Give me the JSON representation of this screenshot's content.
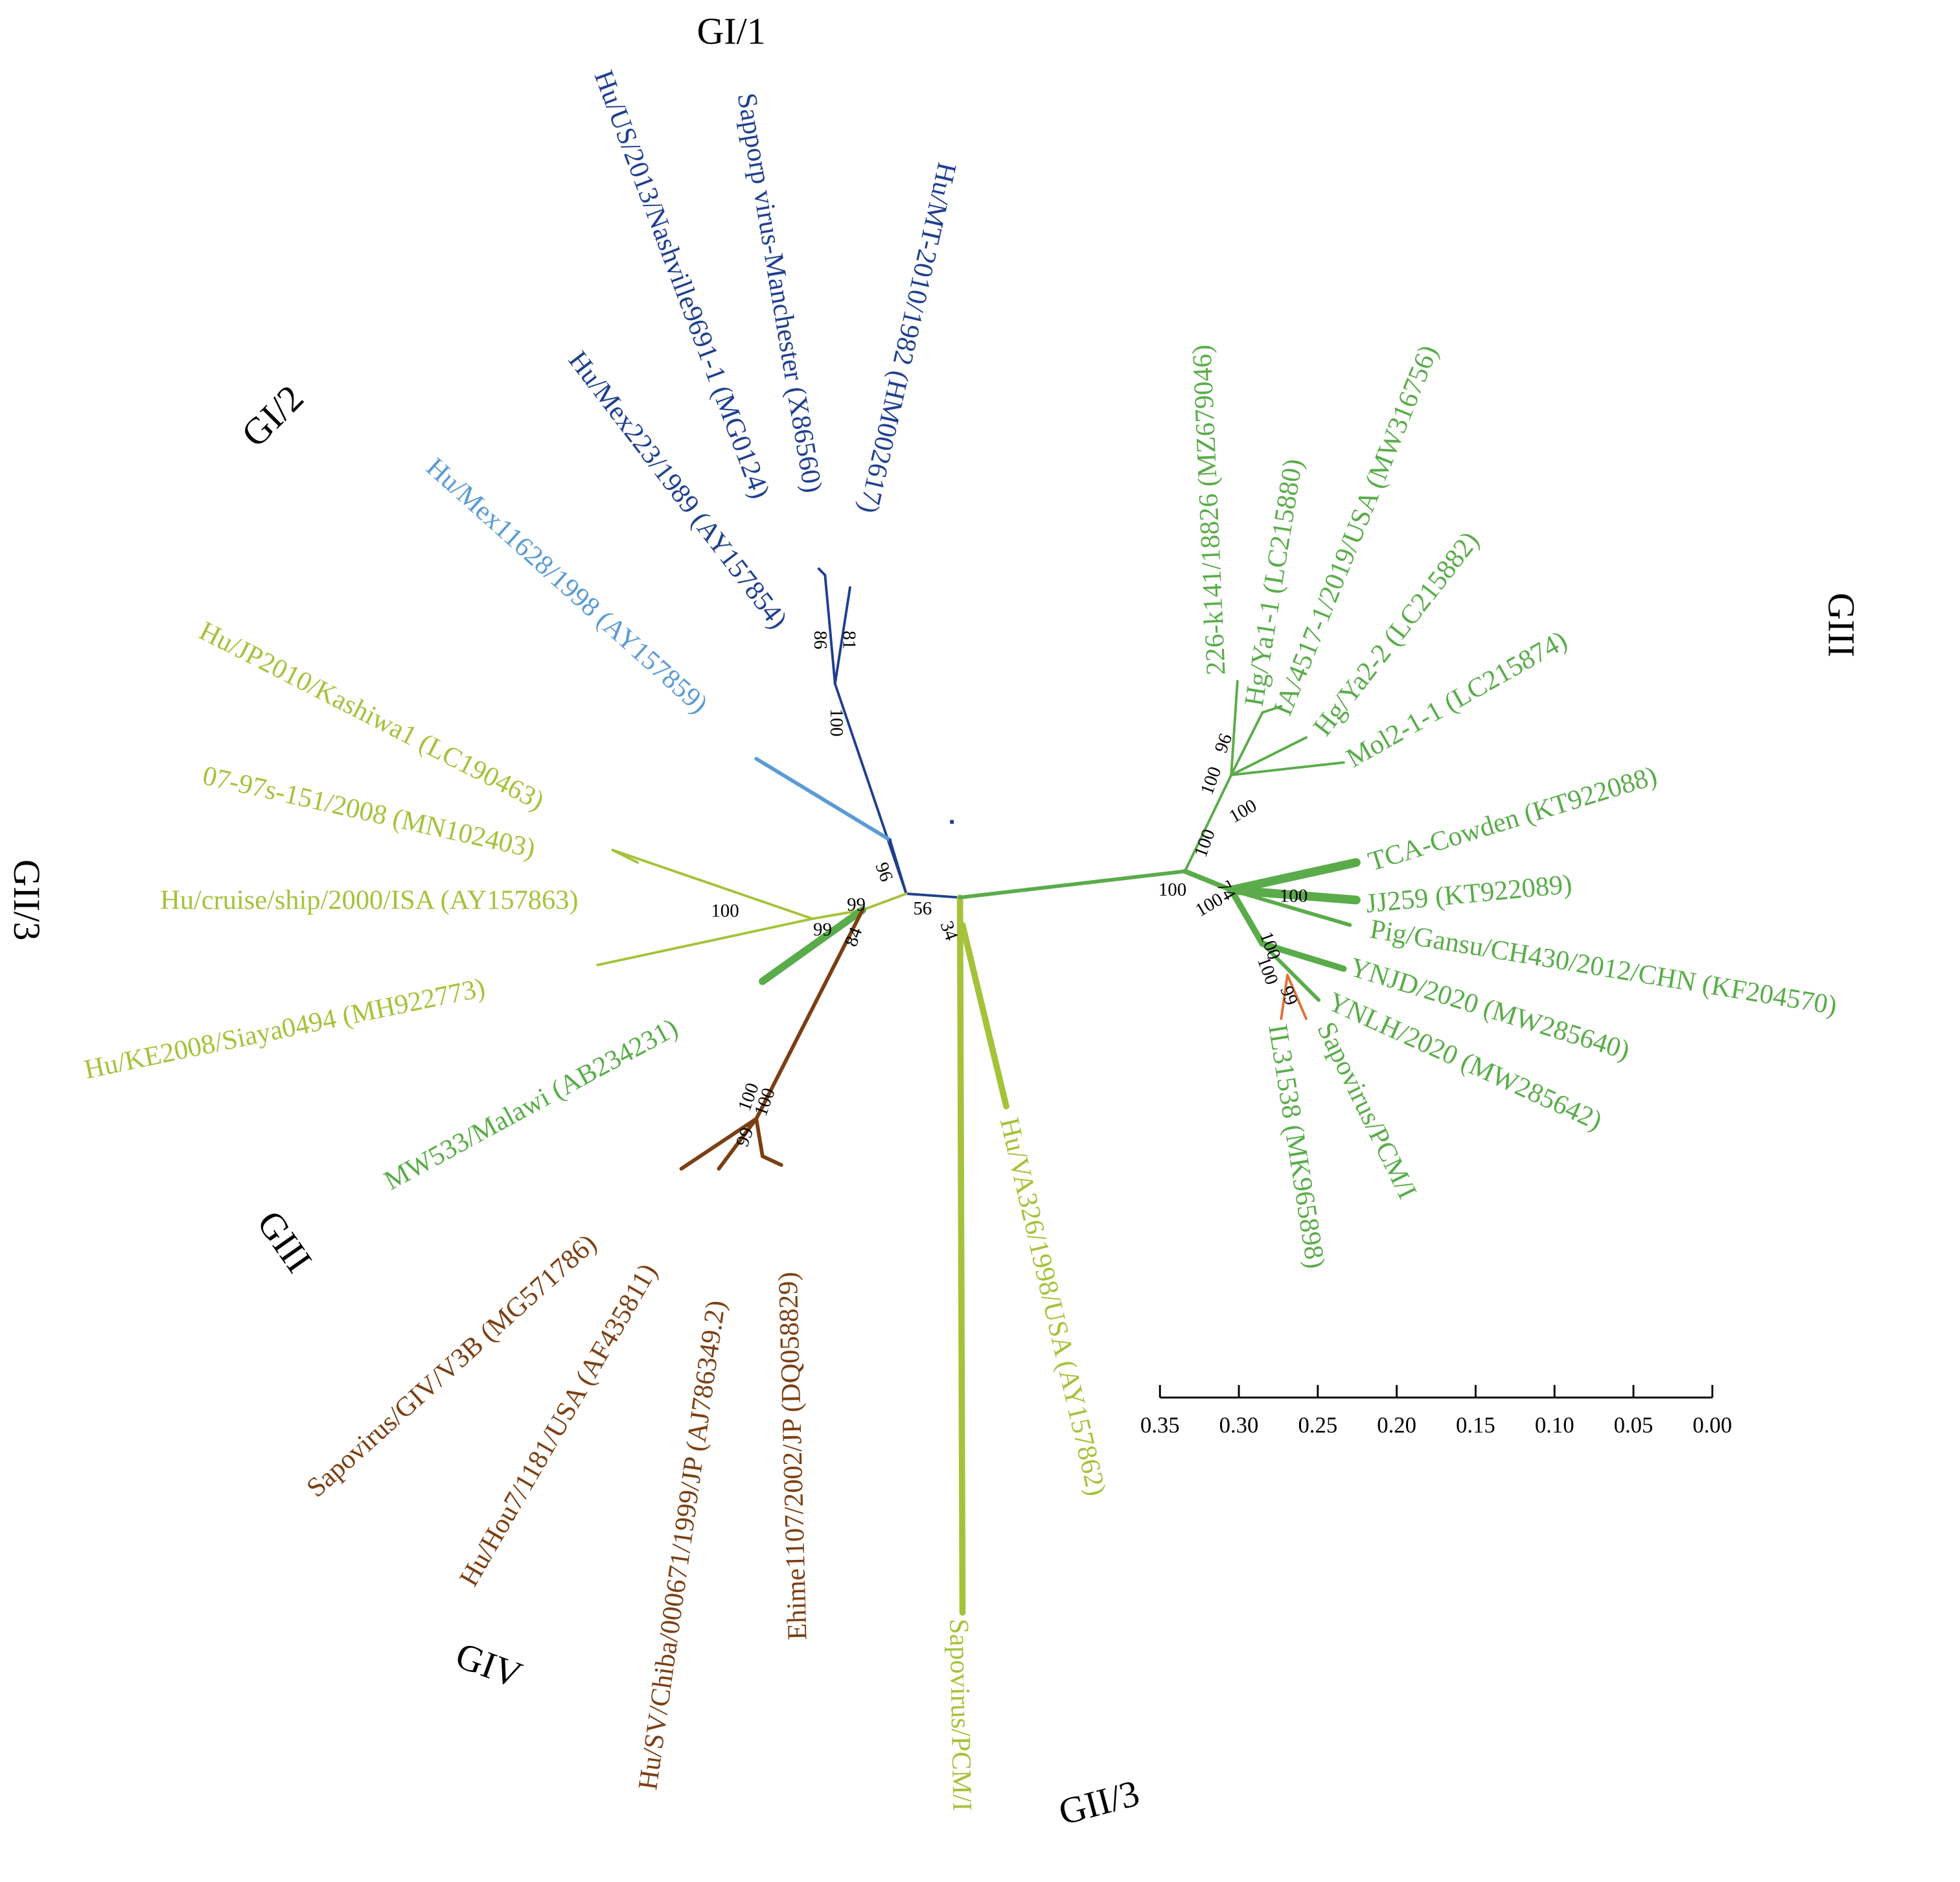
{
  "clades": [
    "GI/1",
    "GI/2",
    "GII/3",
    "GIII",
    "GIII",
    "GIV",
    "GII/3"
  ],
  "leaves": [
    "Hu/US/2013/Nashville9691-1 (MG0124)",
    "Sapporp virus-Manchester (X86560)",
    "Hu/MT-2010/1982 (HM002617)",
    "Hu/Mex223/1989 (AY157854)",
    "Hu/Mex11628/1998 (AY157859)",
    "Hu/JP2010/Kashiwa1 (LC190463)",
    "07-97s-151/2008 (MN102403)",
    "Hu/cruise/ship/2000/ISA (AY157863)",
    "Hu/KE2008/Siaya0494 (MH922773)",
    "MW533/Malawi (AB234231)",
    "Sapovirus/GIV/V3B (MG571786)",
    "Hu/Hou7/1181/USA (AF435811)",
    "Hu/SV/Chiba/000671/1999/JP (AJ786349.2)",
    "Ehime1107/2002/JP (DQ058829)",
    "Hu/VA326/1998/USA (AY157862)",
    "Sapovirus/PCM/I",
    "226-k141/18826 (MZ679046)",
    "Hg/Ya1-1 (LC215880)",
    "IA/4517-1/2019/USA (MW316756)",
    "Hg/Ya2-2 (LC215882)",
    "Mol2-1-1 (LC215874)",
    "TCA-Cowden (KT922088)",
    "JJ259 (KT922089)",
    "Pig/Gansu/CH430/2012/CHN (KF204570)",
    "YNJD/2020 (MW285640)",
    "YNLH/2020 (MW285642)",
    "Sapovirus/PCM/I",
    "IL31538 (MK965898)"
  ],
  "bootstraps": [
    "86",
    "81",
    "100",
    "96",
    "56",
    "34",
    "99",
    "99",
    "84",
    "100",
    "100",
    "100",
    "99",
    "96",
    "100",
    "100",
    "100",
    "100",
    "74",
    "100",
    "100",
    "100",
    "100",
    "99"
  ],
  "scale": {
    "ticks": [
      "0.35",
      "0.30",
      "0.25",
      "0.20",
      "0.15",
      "0.10",
      "0.05",
      "0.00"
    ]
  }
}
